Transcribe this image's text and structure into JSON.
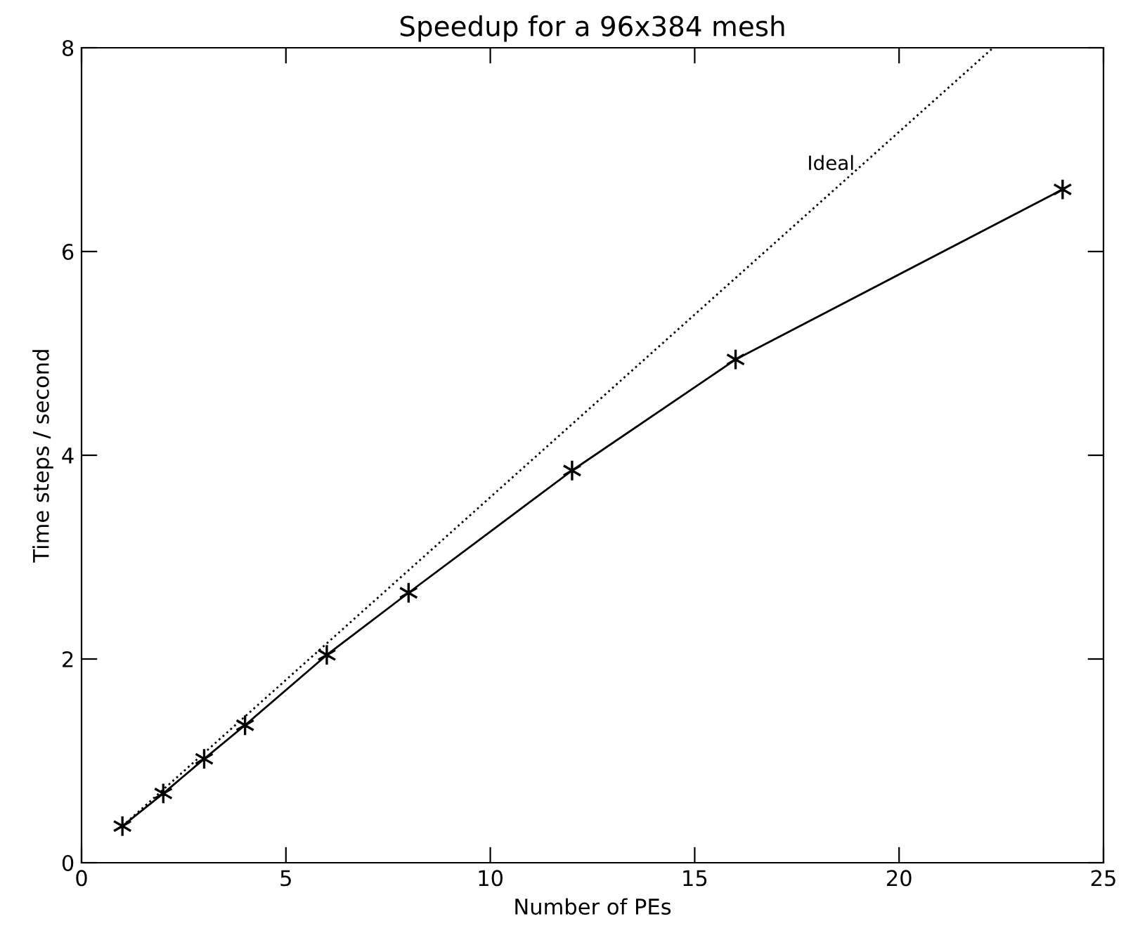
{
  "chart_data": {
    "type": "line",
    "title": "Speedup for a 96x384 mesh",
    "xlabel": "Number of PEs",
    "ylabel": "Time steps / second",
    "xlim": [
      0,
      25
    ],
    "xticks": [
      0,
      5,
      10,
      15,
      20,
      25
    ],
    "ylim": [
      0,
      8
    ],
    "yticks": [
      0,
      2,
      4,
      6,
      8
    ],
    "grid": false,
    "legend": false,
    "series": [
      {
        "color": "#000000",
        "x": [
          1,
          2,
          3,
          4,
          6,
          8,
          12,
          16,
          24
        ],
        "values": [
          0.36,
          0.68,
          1.02,
          1.35,
          2.04,
          2.65,
          3.85,
          4.94,
          6.61
        ],
        "marker": "cross",
        "line_style": "solid"
      },
      {
        "name": "Ideal",
        "color": "#000000",
        "x": [
          1,
          22.3
        ],
        "values": [
          0.36,
          8
        ],
        "marker": "none",
        "line_style": "dotted"
      }
    ]
  }
}
